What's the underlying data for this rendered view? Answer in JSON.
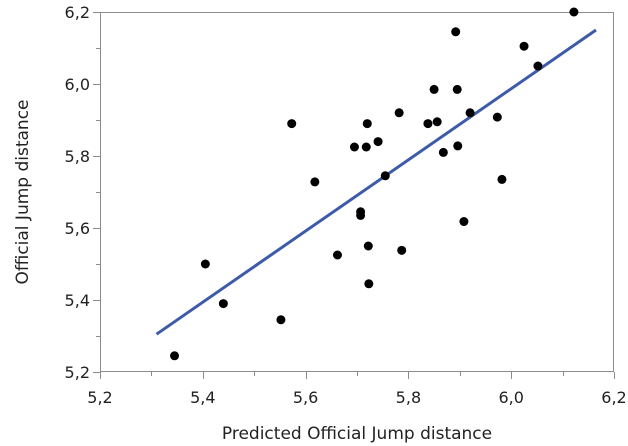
{
  "chart_data": {
    "type": "scatter",
    "xlabel": "Predicted Official Jump distance",
    "ylabel": "Official Jump distance",
    "xlim": [
      5.2,
      6.2
    ],
    "ylim": [
      5.2,
      6.2
    ],
    "xticks": [
      "5,2",
      "5,4",
      "5,6",
      "5,8",
      "6,0",
      "6,2"
    ],
    "yticks": [
      "5,2",
      "5,4",
      "5,6",
      "5,8",
      "6,0",
      "6,2"
    ],
    "grid": false,
    "legend": "none",
    "points": [
      {
        "x": 5.345,
        "y": 5.245
      },
      {
        "x": 5.405,
        "y": 5.5
      },
      {
        "x": 5.44,
        "y": 5.39
      },
      {
        "x": 5.552,
        "y": 5.345
      },
      {
        "x": 5.573,
        "y": 5.89
      },
      {
        "x": 5.618,
        "y": 5.728
      },
      {
        "x": 5.662,
        "y": 5.525
      },
      {
        "x": 5.695,
        "y": 5.825
      },
      {
        "x": 5.707,
        "y": 5.645
      },
      {
        "x": 5.707,
        "y": 5.635
      },
      {
        "x": 5.718,
        "y": 5.825
      },
      {
        "x": 5.72,
        "y": 5.89
      },
      {
        "x": 5.722,
        "y": 5.55
      },
      {
        "x": 5.723,
        "y": 5.445
      },
      {
        "x": 5.741,
        "y": 5.84
      },
      {
        "x": 5.755,
        "y": 5.745
      },
      {
        "x": 5.782,
        "y": 5.92
      },
      {
        "x": 5.787,
        "y": 5.538
      },
      {
        "x": 5.838,
        "y": 5.89
      },
      {
        "x": 5.85,
        "y": 5.985
      },
      {
        "x": 5.856,
        "y": 5.895
      },
      {
        "x": 5.868,
        "y": 5.81
      },
      {
        "x": 5.892,
        "y": 6.145
      },
      {
        "x": 5.895,
        "y": 5.985
      },
      {
        "x": 5.896,
        "y": 5.828
      },
      {
        "x": 5.908,
        "y": 5.618
      },
      {
        "x": 5.92,
        "y": 5.92
      },
      {
        "x": 5.973,
        "y": 5.908
      },
      {
        "x": 5.982,
        "y": 5.735
      },
      {
        "x": 6.025,
        "y": 6.105
      },
      {
        "x": 6.052,
        "y": 6.05
      },
      {
        "x": 6.122,
        "y": 6.2
      }
    ],
    "fit_line": {
      "x": [
        5.31,
        6.165
      ],
      "y": [
        5.305,
        6.15
      ],
      "color": "#3e5ba9"
    },
    "point_color": "#000000"
  }
}
